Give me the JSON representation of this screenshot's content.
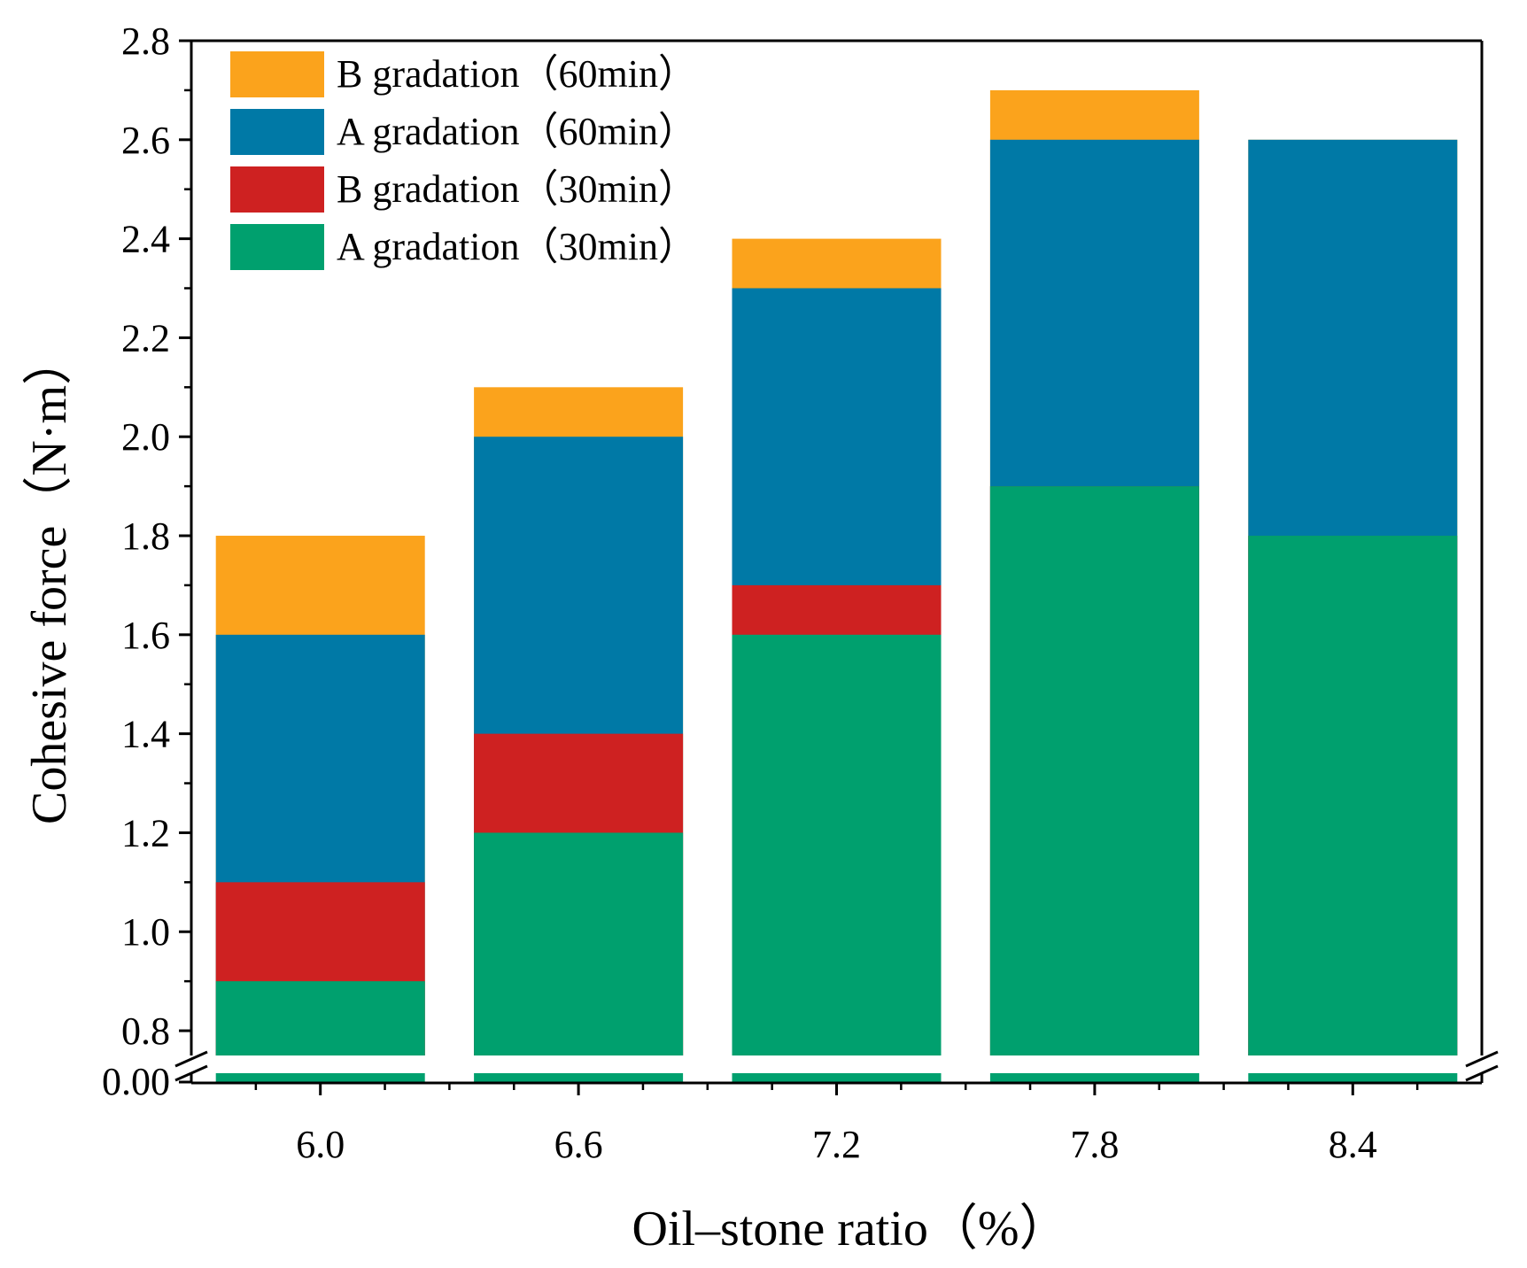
{
  "chart_data": {
    "type": "bar",
    "stacked": false,
    "overlapping": true,
    "title": "",
    "xlabel": "Oil–stone ratio（%）",
    "ylabel": "Cohesive force（N·m）",
    "categories": [
      "6.0",
      "6.6",
      "7.2",
      "7.8",
      "8.4"
    ],
    "series": [
      {
        "name": "B gradation（60min）",
        "color": "#FBA31C",
        "values": [
          1.8,
          2.1,
          2.4,
          2.7,
          2.6
        ]
      },
      {
        "name": "A gradation（60min）",
        "color": "#0079A6",
        "values": [
          1.6,
          2.0,
          2.3,
          2.6,
          2.6
        ]
      },
      {
        "name": "B gradation（30min）",
        "color": "#CE2121",
        "values": [
          1.1,
          1.4,
          1.7,
          1.9,
          1.8
        ]
      },
      {
        "name": "A gradation（30min）",
        "color": "#00A06E",
        "values": [
          0.9,
          1.2,
          1.6,
          1.9,
          1.8
        ]
      }
    ],
    "ylim": [
      0.75,
      2.8
    ],
    "y_break": {
      "low_tick": "0.00",
      "from": 0.0,
      "to": 0.75
    },
    "yticks": [
      "0.8",
      "1.0",
      "1.2",
      "1.4",
      "1.6",
      "1.8",
      "2.0",
      "2.2",
      "2.4",
      "2.6",
      "2.8"
    ],
    "xticks": [
      "6.0",
      "6.6",
      "7.2",
      "7.8",
      "8.4"
    ],
    "legend": "top-left",
    "grid": false
  }
}
